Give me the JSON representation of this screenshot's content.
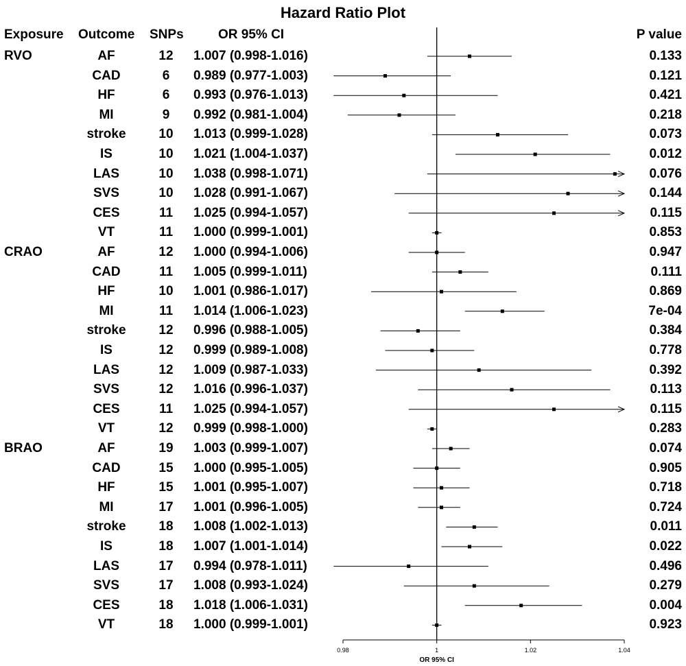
{
  "title": "Hazard Ratio Plot",
  "columns": {
    "exposure": "Exposure",
    "outcome": "Outcome",
    "snps": "SNPs",
    "or_ci": "OR 95% CI",
    "p_value": "P value"
  },
  "chart_data": {
    "type": "forest",
    "title": "Hazard Ratio Plot",
    "xlabel": "OR 95% CI",
    "xlim": [
      0.98,
      1.04
    ],
    "xticks": [
      "0.98",
      "1",
      "1.02",
      "1.04"
    ],
    "reference_line": 1,
    "rows": [
      {
        "exposure": "RVO",
        "outcome": "AF",
        "snps": "12",
        "or_text": "1.007 (0.998-1.016)",
        "p": "0.133",
        "or": 1.007,
        "lo": 0.998,
        "hi": 1.016
      },
      {
        "exposure": "",
        "outcome": "CAD",
        "snps": "6",
        "or_text": "0.989 (0.977-1.003)",
        "p": "0.121",
        "or": 0.989,
        "lo": 0.977,
        "hi": 1.003
      },
      {
        "exposure": "",
        "outcome": "HF",
        "snps": "6",
        "or_text": "0.993 (0.976-1.013)",
        "p": "0.421",
        "or": 0.993,
        "lo": 0.976,
        "hi": 1.013
      },
      {
        "exposure": "",
        "outcome": "MI",
        "snps": "9",
        "or_text": "0.992 (0.981-1.004)",
        "p": "0.218",
        "or": 0.992,
        "lo": 0.981,
        "hi": 1.004
      },
      {
        "exposure": "",
        "outcome": "stroke",
        "snps": "10",
        "or_text": "1.013 (0.999-1.028)",
        "p": "0.073",
        "or": 1.013,
        "lo": 0.999,
        "hi": 1.028
      },
      {
        "exposure": "",
        "outcome": "IS",
        "snps": "10",
        "or_text": "1.021 (1.004-1.037)",
        "p": "0.012",
        "or": 1.021,
        "lo": 1.004,
        "hi": 1.037
      },
      {
        "exposure": "",
        "outcome": "LAS",
        "snps": "10",
        "or_text": "1.038 (0.998-1.071)",
        "p": "0.076",
        "or": 1.038,
        "lo": 0.998,
        "hi": 1.071
      },
      {
        "exposure": "",
        "outcome": "SVS",
        "snps": "10",
        "or_text": "1.028 (0.991-1.067)",
        "p": "0.144",
        "or": 1.028,
        "lo": 0.991,
        "hi": 1.067
      },
      {
        "exposure": "",
        "outcome": "CES",
        "snps": "11",
        "or_text": "1.025 (0.994-1.057)",
        "p": "0.115",
        "or": 1.025,
        "lo": 0.994,
        "hi": 1.057
      },
      {
        "exposure": "",
        "outcome": "VT",
        "snps": "11",
        "or_text": "1.000 (0.999-1.001)",
        "p": "0.853",
        "or": 1.0,
        "lo": 0.999,
        "hi": 1.001
      },
      {
        "exposure": "CRAO",
        "outcome": "AF",
        "snps": "12",
        "or_text": "1.000 (0.994-1.006)",
        "p": "0.947",
        "or": 1.0,
        "lo": 0.994,
        "hi": 1.006
      },
      {
        "exposure": "",
        "outcome": "CAD",
        "snps": "11",
        "or_text": "1.005 (0.999-1.011)",
        "p": "0.111",
        "or": 1.005,
        "lo": 0.999,
        "hi": 1.011
      },
      {
        "exposure": "",
        "outcome": "HF",
        "snps": "10",
        "or_text": "1.001 (0.986-1.017)",
        "p": "0.869",
        "or": 1.001,
        "lo": 0.986,
        "hi": 1.017
      },
      {
        "exposure": "",
        "outcome": "MI",
        "snps": "11",
        "or_text": "1.014 (1.006-1.023)",
        "p": "7e-04",
        "or": 1.014,
        "lo": 1.006,
        "hi": 1.023
      },
      {
        "exposure": "",
        "outcome": "stroke",
        "snps": "12",
        "or_text": "0.996 (0.988-1.005)",
        "p": "0.384",
        "or": 0.996,
        "lo": 0.988,
        "hi": 1.005
      },
      {
        "exposure": "",
        "outcome": "IS",
        "snps": "12",
        "or_text": "0.999 (0.989-1.008)",
        "p": "0.778",
        "or": 0.999,
        "lo": 0.989,
        "hi": 1.008
      },
      {
        "exposure": "",
        "outcome": "LAS",
        "snps": "12",
        "or_text": "1.009 (0.987-1.033)",
        "p": "0.392",
        "or": 1.009,
        "lo": 0.987,
        "hi": 1.033
      },
      {
        "exposure": "",
        "outcome": "SVS",
        "snps": "12",
        "or_text": "1.016 (0.996-1.037)",
        "p": "0.113",
        "or": 1.016,
        "lo": 0.996,
        "hi": 1.037
      },
      {
        "exposure": "",
        "outcome": "CES",
        "snps": "11",
        "or_text": "1.025 (0.994-1.057)",
        "p": "0.115",
        "or": 1.025,
        "lo": 0.994,
        "hi": 1.057
      },
      {
        "exposure": "",
        "outcome": "VT",
        "snps": "12",
        "or_text": "0.999 (0.998-1.000)",
        "p": "0.283",
        "or": 0.999,
        "lo": 0.998,
        "hi": 1.0
      },
      {
        "exposure": "BRAO",
        "outcome": "AF",
        "snps": "19",
        "or_text": "1.003 (0.999-1.007)",
        "p": "0.074",
        "or": 1.003,
        "lo": 0.999,
        "hi": 1.007
      },
      {
        "exposure": "",
        "outcome": "CAD",
        "snps": "15",
        "or_text": "1.000 (0.995-1.005)",
        "p": "0.905",
        "or": 1.0,
        "lo": 0.995,
        "hi": 1.005
      },
      {
        "exposure": "",
        "outcome": "HF",
        "snps": "15",
        "or_text": "1.001 (0.995-1.007)",
        "p": "0.718",
        "or": 1.001,
        "lo": 0.995,
        "hi": 1.007
      },
      {
        "exposure": "",
        "outcome": "MI",
        "snps": "17",
        "or_text": "1.001 (0.996-1.005)",
        "p": "0.724",
        "or": 1.001,
        "lo": 0.996,
        "hi": 1.005
      },
      {
        "exposure": "",
        "outcome": "stroke",
        "snps": "18",
        "or_text": "1.008 (1.002-1.013)",
        "p": "0.011",
        "or": 1.008,
        "lo": 1.002,
        "hi": 1.013
      },
      {
        "exposure": "",
        "outcome": "IS",
        "snps": "18",
        "or_text": "1.007 (1.001-1.014)",
        "p": "0.022",
        "or": 1.007,
        "lo": 1.001,
        "hi": 1.014
      },
      {
        "exposure": "",
        "outcome": "LAS",
        "snps": "17",
        "or_text": "0.994 (0.978-1.011)",
        "p": "0.496",
        "or": 0.994,
        "lo": 0.978,
        "hi": 1.011
      },
      {
        "exposure": "",
        "outcome": "SVS",
        "snps": "17",
        "or_text": "1.008 (0.993-1.024)",
        "p": "0.279",
        "or": 1.008,
        "lo": 0.993,
        "hi": 1.024
      },
      {
        "exposure": "",
        "outcome": "CES",
        "snps": "18",
        "or_text": "1.018 (1.006-1.031)",
        "p": "0.004",
        "or": 1.018,
        "lo": 1.006,
        "hi": 1.031
      },
      {
        "exposure": "",
        "outcome": "VT",
        "snps": "18",
        "or_text": "1.000 (0.999-1.001)",
        "p": "0.923",
        "or": 1.0,
        "lo": 0.999,
        "hi": 1.001
      }
    ]
  }
}
